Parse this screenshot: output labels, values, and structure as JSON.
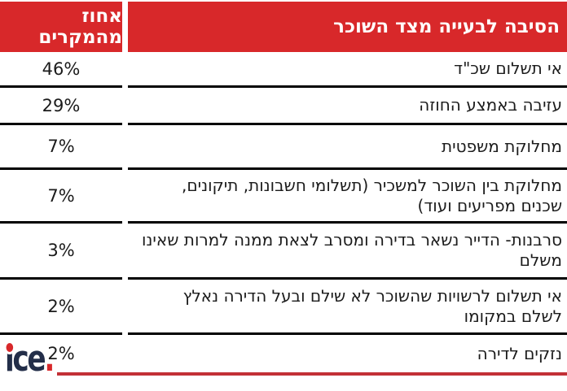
{
  "chart_data": {
    "type": "table",
    "title": "הסיבה לבעייה מצד השוכר",
    "columns": [
      "הסיבה לבעייה מצד השוכר",
      "אחוז מהמקרים"
    ],
    "rows": [
      {
        "reason": "אי תשלום שכ\"ד",
        "percent": "46%",
        "value": 46
      },
      {
        "reason": "עזיבה באמצע החוזה",
        "percent": "29%",
        "value": 29
      },
      {
        "reason": "מחלוקת משפטית",
        "percent": "7%",
        "value": 7
      },
      {
        "reason": "מחלוקת בין השוכר למשכיר (תשלומי חשבונות, תיקונים, שכנים מפריעים ועוד)",
        "percent": "7%",
        "value": 7
      },
      {
        "reason": "סרבנות-  הדייר נשאר בדירה ומסרב לצאת ממנה למרות שאינו משלם",
        "percent": "3%",
        "value": 3
      },
      {
        "reason": "אי תשלום לרשויות שהשוכר לא שילם ובעל הדירה נאלץ לשלם במקומו",
        "percent": "2%",
        "value": 2
      },
      {
        "reason": "נזקים לדירה",
        "percent": "2%",
        "value": 2
      }
    ],
    "value_unit": "%",
    "layout": {
      "direction": "rtl",
      "grid": "horizontal-dividers",
      "legend": "none"
    }
  },
  "branding": {
    "logo_text": "ice",
    "logo_period": "."
  },
  "colors": {
    "header_red": "#d8282a",
    "underline_red": "#c23036",
    "logo_navy": "#232e49",
    "logo_red": "#d8282a",
    "divider_black": "#000000"
  }
}
